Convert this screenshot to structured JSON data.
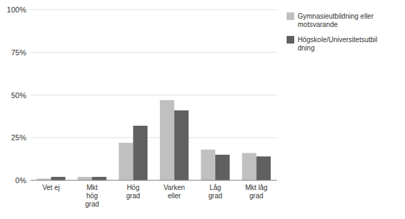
{
  "chart_data": {
    "type": "bar",
    "categories": [
      "Vet ej",
      "Mkt\nhög\ngrad",
      "Hög\ngrad",
      "Varken\neller",
      "Låg\ngrad",
      "Mkt låg\ngrad"
    ],
    "series": [
      {
        "name": "Gymnasieutbildning eller\nmotsvarande",
        "color": "#c0c0c0",
        "values": [
          1,
          2,
          22,
          47,
          18,
          16
        ]
      },
      {
        "name": "Högskole/Universitetsutbil\ndning",
        "color": "#606060",
        "values": [
          2,
          2,
          32,
          41,
          15,
          14
        ]
      }
    ],
    "ylim": [
      0,
      100
    ],
    "yticks": [
      {
        "value": 0,
        "label": "0%"
      },
      {
        "value": 25,
        "label": "25%"
      },
      {
        "value": 50,
        "label": "50%"
      },
      {
        "value": 75,
        "label": "75%"
      },
      {
        "value": 100,
        "label": "100%"
      }
    ],
    "grid": true,
    "legend": "right"
  }
}
